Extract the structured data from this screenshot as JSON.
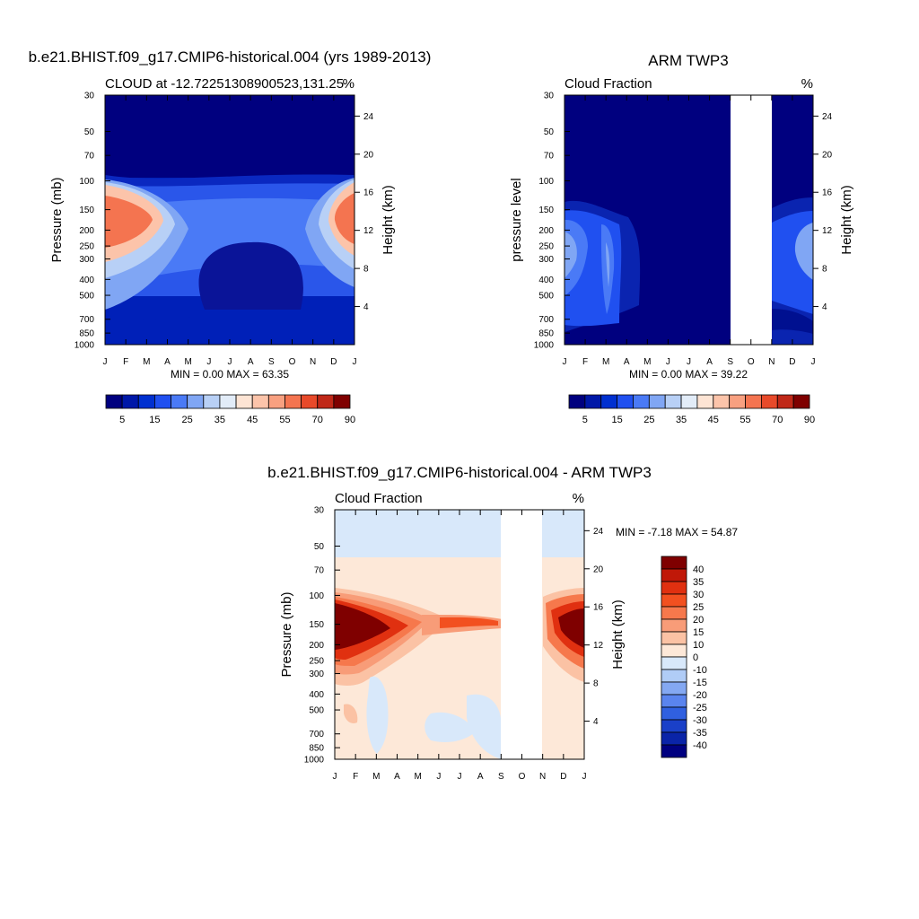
{
  "chart_data": [
    {
      "type": "heatmap",
      "id": "model",
      "title": "b.e21.BHIST.f09_g17.CMIP6-historical.004 (yrs 1989-2013)",
      "left_label": "CLOUD at -12.72251308900523,131.25",
      "right_label": "%",
      "ylabel": "Pressure (mb)",
      "ylabel_right": "Height (km)",
      "stats": "MIN =   0.00 MAX =  63.35",
      "min": 0.0,
      "max": 63.35,
      "x_ticks": [
        "J",
        "F",
        "M",
        "A",
        "M",
        "J",
        "J",
        "A",
        "S",
        "O",
        "N",
        "D",
        "J"
      ],
      "y_ticks": [
        30,
        50,
        70,
        100,
        150,
        200,
        250,
        300,
        400,
        500,
        700,
        850,
        1000
      ],
      "y_ticks_right": [
        24,
        20,
        16,
        12,
        8,
        4
      ],
      "colorbar_labels": [
        "5",
        "15",
        "25",
        "35",
        "45",
        "55",
        "70",
        "90"
      ],
      "missing_months": []
    },
    {
      "type": "heatmap",
      "id": "obs",
      "title": "ARM TWP3",
      "left_label": "Cloud Fraction",
      "right_label": "%",
      "ylabel": "pressure level",
      "ylabel_right": "Height (km)",
      "stats": "MIN =   0.00 MAX =  39.22",
      "min": 0.0,
      "max": 39.22,
      "x_ticks": [
        "J",
        "F",
        "M",
        "A",
        "M",
        "J",
        "J",
        "A",
        "S",
        "O",
        "N",
        "D",
        "J"
      ],
      "y_ticks": [
        30,
        50,
        70,
        100,
        150,
        200,
        250,
        300,
        400,
        500,
        700,
        850,
        1000
      ],
      "y_ticks_right": [
        24,
        20,
        16,
        12,
        8,
        4
      ],
      "colorbar_labels": [
        "5",
        "15",
        "25",
        "35",
        "45",
        "55",
        "70",
        "90"
      ],
      "missing_months": [
        "S",
        "O",
        "N"
      ]
    },
    {
      "type": "heatmap",
      "id": "diff",
      "title": "b.e21.BHIST.f09_g17.CMIP6-historical.004 - ARM TWP3",
      "left_label": "Cloud Fraction",
      "right_label": "%",
      "ylabel": "Pressure (mb)",
      "ylabel_right": "Height (km)",
      "stats": "MIN =  -7.18 MAX =  54.87",
      "min": -7.18,
      "max": 54.87,
      "x_ticks": [
        "J",
        "F",
        "M",
        "A",
        "M",
        "J",
        "J",
        "A",
        "S",
        "O",
        "N",
        "D",
        "J"
      ],
      "y_ticks": [
        30,
        50,
        70,
        100,
        150,
        200,
        250,
        300,
        400,
        500,
        700,
        850,
        1000
      ],
      "y_ticks_right": [
        24,
        20,
        16,
        12,
        8,
        4
      ],
      "colorbar_labels": [
        "40",
        "35",
        "30",
        "25",
        "20",
        "15",
        "10",
        "0",
        "-10",
        "-15",
        "-20",
        "-25",
        "-30",
        "-35",
        "-40"
      ],
      "missing_months": [
        "S",
        "O",
        "N"
      ]
    }
  ],
  "colors": {
    "cloud_scale": [
      "#00007f",
      "#0018a8",
      "#0030d0",
      "#2050f0",
      "#4a7af6",
      "#80a6f4",
      "#b8d0f6",
      "#e2ecf8",
      "#fde4d4",
      "#fcc4aa",
      "#f8a080",
      "#f47450",
      "#e84a2a",
      "#c02818",
      "#7f0000"
    ],
    "diff_scale": [
      "#7f0000",
      "#c01808",
      "#e03010",
      "#f25020",
      "#f6784c",
      "#f89c78",
      "#fbc2a4",
      "#fde8d8",
      "#d8e8fa",
      "#b0ccf6",
      "#84a8f2",
      "#5a84ee",
      "#3060e0",
      "#1a40c8",
      "#0a24a8",
      "#000080"
    ]
  }
}
